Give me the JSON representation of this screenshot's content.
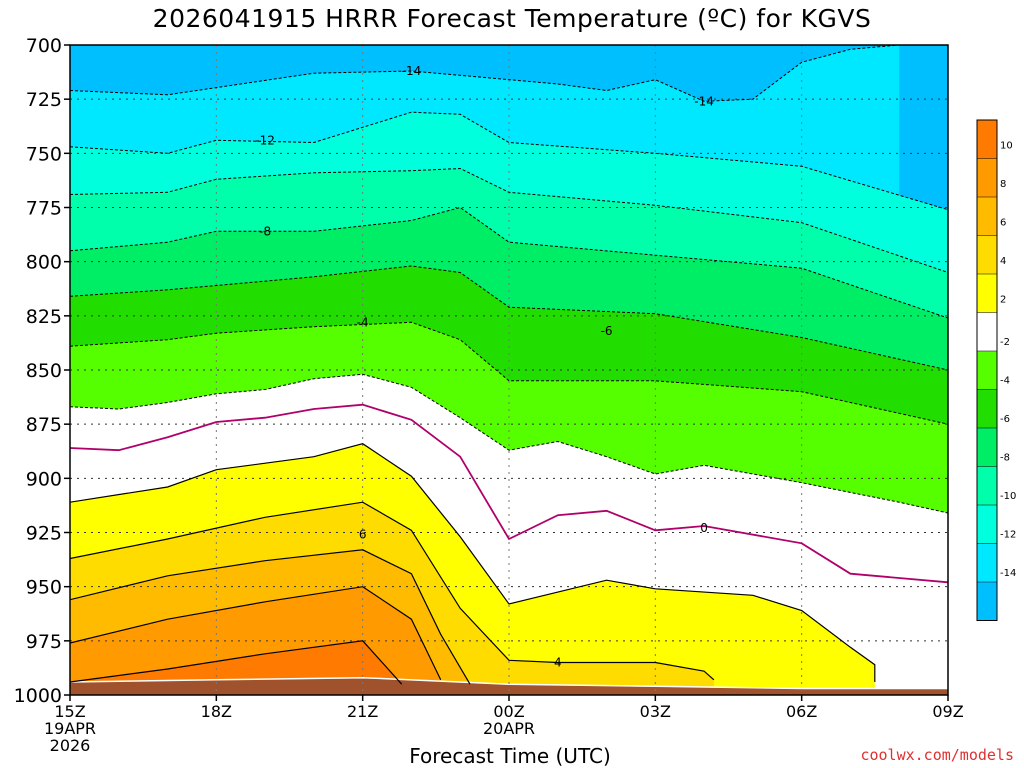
{
  "chart_data": {
    "type": "heatmap",
    "title": "2026041915 HRRR Forecast Temperature (ºC) for KGVS",
    "xlabel": "Forecast Time (UTC)",
    "ylabel": "",
    "credit": "coolwx.com/models",
    "y_axis": {
      "quantity": "pressure (hPa)",
      "ticks": [
        700,
        725,
        750,
        775,
        800,
        825,
        850,
        875,
        900,
        925,
        950,
        975,
        1000
      ],
      "range": [
        700,
        1000
      ],
      "reversed": true
    },
    "x_axis": {
      "ticks": [
        "2026-04-19T15Z",
        "2026-04-19T18Z",
        "2026-04-19T21Z",
        "2026-04-20T00Z",
        "2026-04-20T03Z",
        "2026-04-20T06Z",
        "2026-04-20T09Z"
      ],
      "tick_labels": [
        "15Z\n19APR\n2026",
        "18Z",
        "21Z",
        "00Z\n20APR",
        "03Z",
        "06Z",
        "09Z"
      ],
      "range": [
        "2026-04-19T15Z",
        "2026-04-20T09Z"
      ]
    },
    "grid": true,
    "colorbar": {
      "labels": [
        "10",
        "8",
        "6",
        "4",
        "2",
        "-2",
        "-4",
        "-6",
        "-8",
        "-10",
        "-12",
        "-14"
      ],
      "colors": [
        "#ff7a00",
        "#ff9a00",
        "#ffbb00",
        "#ffdc00",
        "#ffff00",
        "#ffffff",
        "#55ff00",
        "#22dd00",
        "#00ee66",
        "#00ffaa",
        "#00ffdd",
        "#00e8ff",
        "#00bfff"
      ]
    },
    "contour_labels": [
      "-14",
      "-14",
      "-12",
      "-8",
      "-4",
      "-6",
      "0",
      "6",
      "4"
    ],
    "series": [
      {
        "level": -14,
        "x": [
          "2026-04-19T15Z",
          "2026-04-19T17Z",
          "2026-04-19T20Z",
          "2026-04-19T22Z",
          "2026-04-20T01Z",
          "2026-04-20T02Z",
          "2026-04-20T03Z",
          "2026-04-20T04Z",
          "2026-04-20T05Z",
          "2026-04-20T06Z",
          "2026-04-20T07Z",
          "2026-04-20T08Z"
        ],
        "y": [
          721,
          723,
          713,
          712,
          718,
          721,
          716,
          726,
          725,
          708,
          702,
          700
        ]
      },
      {
        "level": -12,
        "x": [
          "2026-04-19T15Z",
          "2026-04-19T17Z",
          "2026-04-19T18Z",
          "2026-04-19T20Z",
          "2026-04-19T22Z",
          "2026-04-19T23Z",
          "2026-04-20T00Z",
          "2026-04-20T03Z",
          "2026-04-20T06Z",
          "2026-04-20T09Z"
        ],
        "y": [
          747,
          750,
          744,
          745,
          731,
          732,
          745,
          750,
          756,
          776
        ]
      },
      {
        "level": -10,
        "x": [
          "2026-04-19T15Z",
          "2026-04-19T17Z",
          "2026-04-19T18Z",
          "2026-04-19T20Z",
          "2026-04-19T22Z",
          "2026-04-19T23Z",
          "2026-04-20T00Z",
          "2026-04-20T03Z",
          "2026-04-20T06Z",
          "2026-04-20T09Z"
        ],
        "y": [
          769,
          768,
          762,
          759,
          758,
          757,
          768,
          774,
          782,
          805
        ]
      },
      {
        "level": -8,
        "x": [
          "2026-04-19T15Z",
          "2026-04-19T17Z",
          "2026-04-19T18Z",
          "2026-04-19T20Z",
          "2026-04-19T22Z",
          "2026-04-19T23Z",
          "2026-04-20T00Z",
          "2026-04-20T03Z",
          "2026-04-20T06Z",
          "2026-04-20T09Z"
        ],
        "y": [
          795,
          791,
          786,
          786,
          781,
          775,
          791,
          797,
          803,
          826
        ]
      },
      {
        "level": -6,
        "x": [
          "2026-04-19T15Z",
          "2026-04-19T17Z",
          "2026-04-19T18Z",
          "2026-04-19T20Z",
          "2026-04-19T22Z",
          "2026-04-19T23Z",
          "2026-04-20T00Z",
          "2026-04-20T03Z",
          "2026-04-20T06Z",
          "2026-04-20T09Z"
        ],
        "y": [
          816,
          813,
          811,
          807,
          802,
          805,
          821,
          824,
          835,
          850
        ]
      },
      {
        "level": -4,
        "x": [
          "2026-04-19T15Z",
          "2026-04-19T17Z",
          "2026-04-19T18Z",
          "2026-04-19T20Z",
          "2026-04-19T22Z",
          "2026-04-19T23Z",
          "2026-04-20T00Z",
          "2026-04-20T03Z",
          "2026-04-20T06Z",
          "2026-04-20T09Z"
        ],
        "y": [
          839,
          836,
          833,
          830,
          828,
          836,
          855,
          855,
          860,
          875
        ]
      },
      {
        "level": -2,
        "x": [
          "2026-04-19T15Z",
          "2026-04-19T16Z",
          "2026-04-19T17Z",
          "2026-04-19T18Z",
          "2026-04-19T19Z",
          "2026-04-19T20Z",
          "2026-04-19T21Z",
          "2026-04-19T22Z",
          "2026-04-19T23Z",
          "2026-04-20T00Z",
          "2026-04-20T01Z",
          "2026-04-20T02Z",
          "2026-04-20T03Z",
          "2026-04-20T04Z",
          "2026-04-20T06Z",
          "2026-04-20T08Z",
          "2026-04-20T09Z"
        ],
        "y": [
          867,
          868,
          865,
          861,
          859,
          854,
          852,
          858,
          872,
          887,
          883,
          890,
          898,
          894,
          902,
          911,
          916
        ]
      },
      {
        "level": 0,
        "x": [
          "2026-04-19T15Z",
          "2026-04-19T16Z",
          "2026-04-19T17Z",
          "2026-04-19T18Z",
          "2026-04-19T19Z",
          "2026-04-19T20Z",
          "2026-04-19T21Z",
          "2026-04-19T22Z",
          "2026-04-19T23Z",
          "2026-04-20T00Z",
          "2026-04-20T01Z",
          "2026-04-20T02Z",
          "2026-04-20T03Z",
          "2026-04-20T04Z",
          "2026-04-20T06Z",
          "2026-04-20T07Z",
          "2026-04-20T09Z"
        ],
        "y": [
          886,
          887,
          881,
          874,
          872,
          868,
          866,
          873,
          890,
          928,
          917,
          915,
          924,
          922,
          930,
          944,
          948
        ]
      },
      {
        "level": 2,
        "x": [
          "2026-04-19T15Z",
          "2026-04-19T17Z",
          "2026-04-19T18Z",
          "2026-04-19T20Z",
          "2026-04-19T21Z",
          "2026-04-19T22Z",
          "2026-04-19T23Z",
          "2026-04-20T00Z",
          "2026-04-20T02Z",
          "2026-04-20T03Z",
          "2026-04-20T05Z",
          "2026-04-20T06Z",
          "2026-04-20T07Z",
          "2026-04-20T07.5Z",
          "2026-04-20T07.5Z"
        ],
        "y": [
          911,
          904,
          896,
          890,
          884,
          899,
          927,
          958,
          947,
          951,
          954,
          961,
          978,
          986,
          994
        ]
      },
      {
        "level": 4,
        "x": [
          "2026-04-19T15Z",
          "2026-04-19T17Z",
          "2026-04-19T19Z",
          "2026-04-19T21Z",
          "2026-04-19T22Z",
          "2026-04-19T23Z",
          "2026-04-20T00Z",
          "2026-04-20T01Z",
          "2026-04-20T03Z",
          "2026-04-20T04Z",
          "2026-04-20T04.2Z"
        ],
        "y": [
          937,
          928,
          918,
          911,
          924,
          960,
          984,
          985,
          985,
          989,
          993
        ]
      },
      {
        "level": 6,
        "x": [
          "2026-04-19T15Z",
          "2026-04-19T17Z",
          "2026-04-19T19Z",
          "2026-04-19T21Z",
          "2026-04-19T22Z",
          "2026-04-19T22.6Z",
          "2026-04-19T23.2Z"
        ],
        "y": [
          956,
          945,
          938,
          933,
          944,
          972,
          995
        ]
      },
      {
        "level": 8,
        "x": [
          "2026-04-19T15Z",
          "2026-04-19T17Z",
          "2026-04-19T19Z",
          "2026-04-19T21Z",
          "2026-04-19T22Z",
          "2026-04-19T22.6Z"
        ],
        "y": [
          976,
          965,
          957,
          950,
          965,
          993
        ]
      },
      {
        "level": 10,
        "x": [
          "2026-04-19T15Z",
          "2026-04-19T17Z",
          "2026-04-19T19Z",
          "2026-04-19T21Z",
          "2026-04-19T21.8Z"
        ],
        "y": [
          994,
          988,
          981,
          975,
          995
        ]
      },
      {
        "level": "surface",
        "x": [
          "2026-04-19T15Z",
          "2026-04-19T18Z",
          "2026-04-19T21Z",
          "2026-04-20T00Z",
          "2026-04-20T03Z",
          "2026-04-20T06Z",
          "2026-04-20T09Z"
        ],
        "y": [
          994,
          993,
          992,
          995,
          996,
          997,
          997
        ]
      }
    ]
  }
}
